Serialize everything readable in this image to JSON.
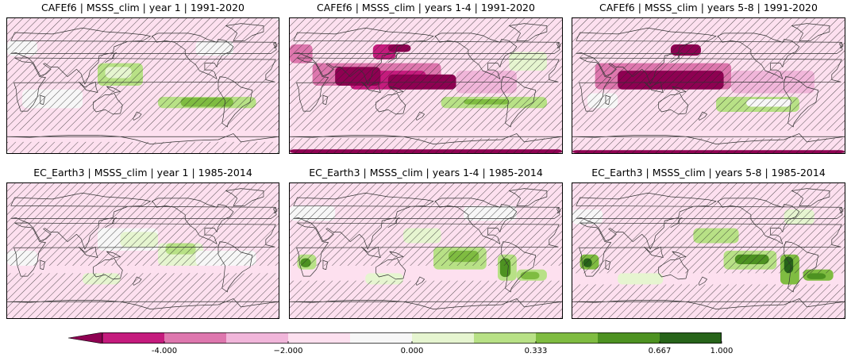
{
  "panels": [
    {
      "title": "CAFEf6 | MSSS_clim | year 1 | 1991-2020"
    },
    {
      "title": "CAFEf6 | MSSS_clim | years 1-4 | 1991-2020"
    },
    {
      "title": "CAFEf6 | MSSS_clim | years 5-8 | 1991-2020"
    },
    {
      "title": "EC_Earth3 | MSSS_clim | year 1 | 1985-2014"
    },
    {
      "title": "EC_Earth3 | MSSS_clim | years 1-4 | 1985-2014"
    },
    {
      "title": "EC_Earth3 | MSSS_clim | years 5-8 | 1985-2014"
    }
  ],
  "colorbar": {
    "extend": "min",
    "arrow_color": "#8e0152",
    "colors": [
      "#c51b7d",
      "#de77ae",
      "#f1b6da",
      "#fde0ef",
      "#f7f7f7",
      "#e6f5d0",
      "#b8e186",
      "#7fbc41",
      "#4d9221",
      "#276419"
    ],
    "tick_labels": [
      "-4.000",
      "−2.000",
      "0.000",
      "0.333",
      "0.667",
      "1.000"
    ],
    "tick_values": [
      -4,
      -2,
      0,
      0.333,
      0.667,
      1.0
    ]
  },
  "map_style": {
    "coastline_color": "#333333",
    "hatch_color": "#222222"
  }
}
